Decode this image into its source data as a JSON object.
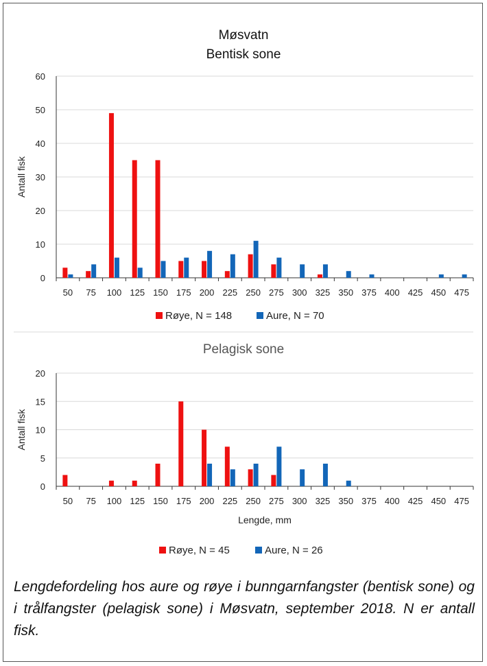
{
  "chart_data": [
    {
      "type": "bar",
      "title": "Møsvatn",
      "subtitle": "Bentisk sone",
      "xlabel": "",
      "ylabel": "Antall fisk",
      "ylim": [
        0,
        60
      ],
      "yticks": [
        0,
        10,
        20,
        30,
        40,
        50,
        60
      ],
      "grid": true,
      "legend": "bottom",
      "categories": [
        "50",
        "75",
        "100",
        "125",
        "150",
        "175",
        "200",
        "225",
        "250",
        "275",
        "300",
        "325",
        "350",
        "375",
        "400",
        "425",
        "450",
        "475"
      ],
      "series": [
        {
          "name": "Røye, N = 148",
          "color": "#ee1111",
          "values": [
            3,
            2,
            49,
            35,
            35,
            5,
            5,
            2,
            7,
            4,
            0,
            1,
            0,
            0,
            0,
            0,
            0,
            0
          ]
        },
        {
          "name": "Aure, N = 70",
          "color": "#1366b8",
          "values": [
            1,
            4,
            6,
            3,
            5,
            6,
            8,
            7,
            11,
            6,
            4,
            4,
            2,
            1,
            0,
            0,
            1,
            1
          ]
        }
      ]
    },
    {
      "type": "bar",
      "title": "Pelagisk sone",
      "xlabel": "Lengde, mm",
      "ylabel": "Antall fisk",
      "ylim": [
        0,
        20
      ],
      "yticks": [
        0,
        5,
        10,
        15,
        20
      ],
      "grid": true,
      "legend": "bottom",
      "categories": [
        "50",
        "75",
        "100",
        "125",
        "150",
        "175",
        "200",
        "225",
        "250",
        "275",
        "300",
        "325",
        "350",
        "375",
        "400",
        "425",
        "450",
        "475"
      ],
      "series": [
        {
          "name": "Røye, N = 45",
          "color": "#ee1111",
          "values": [
            2,
            0,
            1,
            1,
            4,
            15,
            10,
            7,
            3,
            2,
            0,
            0,
            0,
            0,
            0,
            0,
            0,
            0
          ]
        },
        {
          "name": "Aure, N = 26",
          "color": "#1366b8",
          "values": [
            0,
            0,
            0,
            0,
            0,
            0,
            4,
            3,
            4,
            7,
            3,
            4,
            1,
            0,
            0,
            0,
            0,
            0
          ]
        }
      ]
    }
  ],
  "caption": "Lengdefordeling hos aure og røye i bunngarnfangster (bentisk sone) og i trålfangster (pelagisk sone) i Møsvatn, september 2018. N er antall fisk."
}
